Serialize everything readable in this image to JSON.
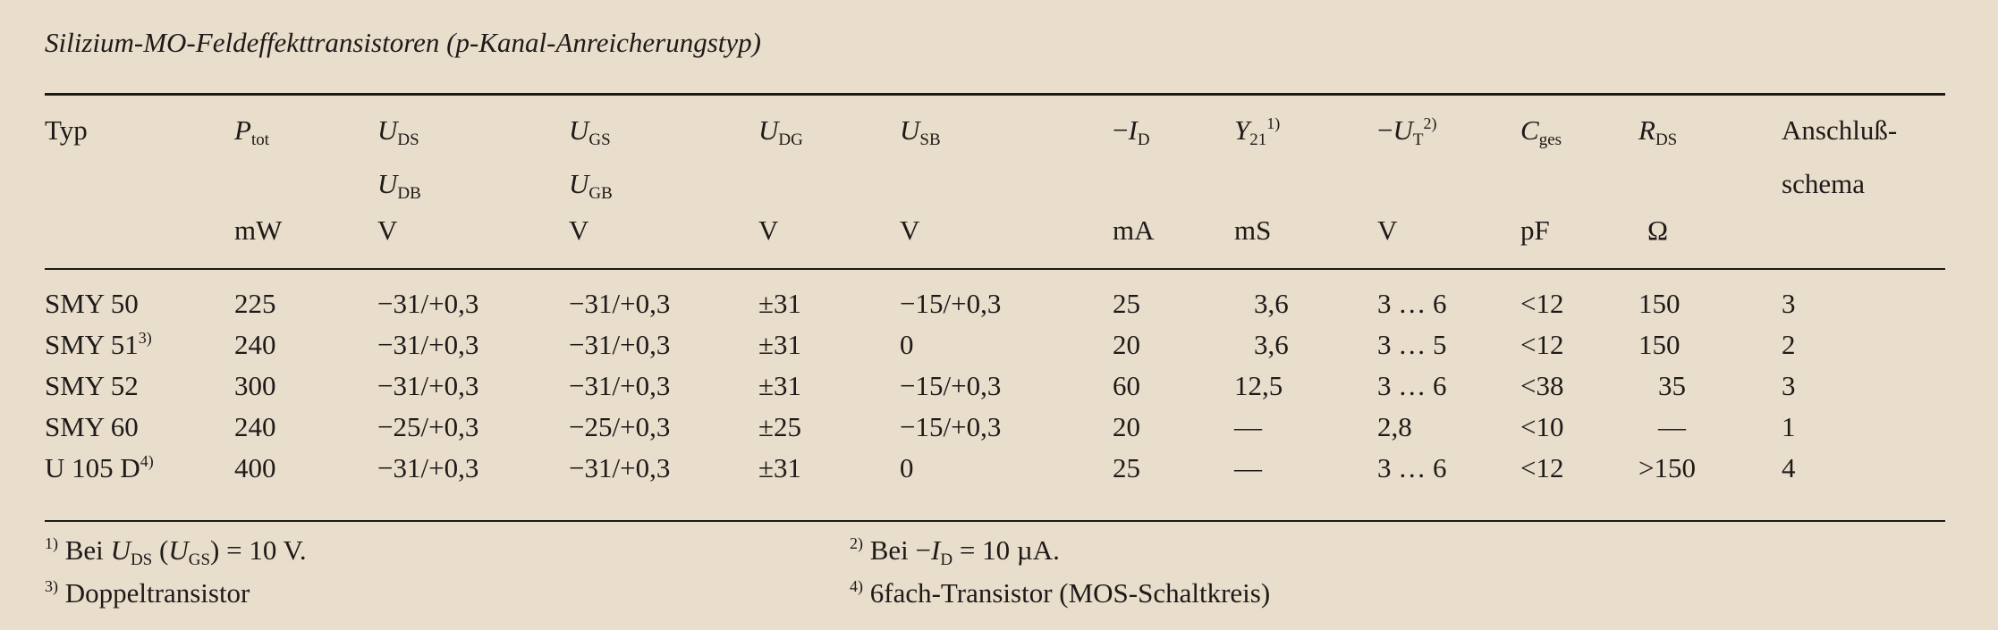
{
  "title": "Silizium-MO-Feldeffekttransistoren (p-Kanal-Anreicherungstyp)",
  "columns": [
    {
      "sym": "Typ",
      "unit": ""
    },
    {
      "sym": "P",
      "sub": "tot",
      "unit": "mW"
    },
    {
      "sym": "U",
      "sub": "DS",
      "sym2": "U",
      "sub2": "DB",
      "unit": "V"
    },
    {
      "sym": "U",
      "sub": "GS",
      "sym2": "U",
      "sub2": "GB",
      "unit": "V"
    },
    {
      "sym": "U",
      "sub": "DG",
      "unit": "V"
    },
    {
      "sym": "U",
      "sub": "SB",
      "unit": "V"
    },
    {
      "pre": "−",
      "sym": "I",
      "sub": "D",
      "unit": "mA"
    },
    {
      "sym": "Y",
      "sub": "21",
      "sup": "1)",
      "unit": "mS"
    },
    {
      "pre": "−",
      "sym": "U",
      "sub": "T",
      "sup": "2)",
      "unit": "V"
    },
    {
      "sym": "C",
      "sub": "ges",
      "unit": "pF"
    },
    {
      "sym": "R",
      "sub": "DS",
      "unit": "Ω"
    },
    {
      "sym": "Anschluß-",
      "sym2": "schema",
      "unit": ""
    }
  ],
  "rows": [
    {
      "typ": "SMY 50",
      "sup": "",
      "cells": [
        "225",
        "−31/+0,3",
        "−31/+0,3",
        "±31",
        "−15/+0,3",
        "25",
        "3,6",
        "3 … 6",
        "<12",
        "150",
        "3"
      ]
    },
    {
      "typ": "SMY 51",
      "sup": "3)",
      "cells": [
        "240",
        "−31/+0,3",
        "−31/+0,3",
        "±31",
        "0",
        "20",
        "3,6",
        "3 … 5",
        "<12",
        "150",
        "2"
      ]
    },
    {
      "typ": "SMY 52",
      "sup": "",
      "cells": [
        "300",
        "−31/+0,3",
        "−31/+0,3",
        "±31",
        "−15/+0,3",
        "60",
        "12,5",
        "3 … 6",
        "<38",
        "35",
        "3"
      ]
    },
    {
      "typ": "SMY 60",
      "sup": "",
      "cells": [
        "240",
        "−25/+0,3",
        "−25/+0,3",
        "±25",
        "−15/+0,3",
        "20",
        "—",
        "2,8",
        "<10",
        "—",
        "1"
      ]
    },
    {
      "typ": "U 105 D",
      "sup": "4)",
      "cells": [
        "400",
        "−31/+0,3",
        "−31/+0,3",
        "±31",
        "0",
        "25",
        "—",
        "3 … 6",
        "<12",
        ">150",
        "4"
      ]
    }
  ],
  "footnotes": {
    "f1": {
      "mark": "1)",
      "a": "Bei ",
      "s1": "U",
      "s1sub": "DS",
      "b": " (",
      "s2": "U",
      "s2sub": "GS",
      "c": ") = 10 V."
    },
    "f2": {
      "mark": "2)",
      "a": "Bei −",
      "s1": "I",
      "s1sub": "D",
      "c": " = 10 µA."
    },
    "f3": {
      "mark": "3)",
      "text": "Doppeltransistor"
    },
    "f4": {
      "mark": "4)",
      "text": "6fach-Transistor (MOS-Schaltkreis)"
    }
  }
}
